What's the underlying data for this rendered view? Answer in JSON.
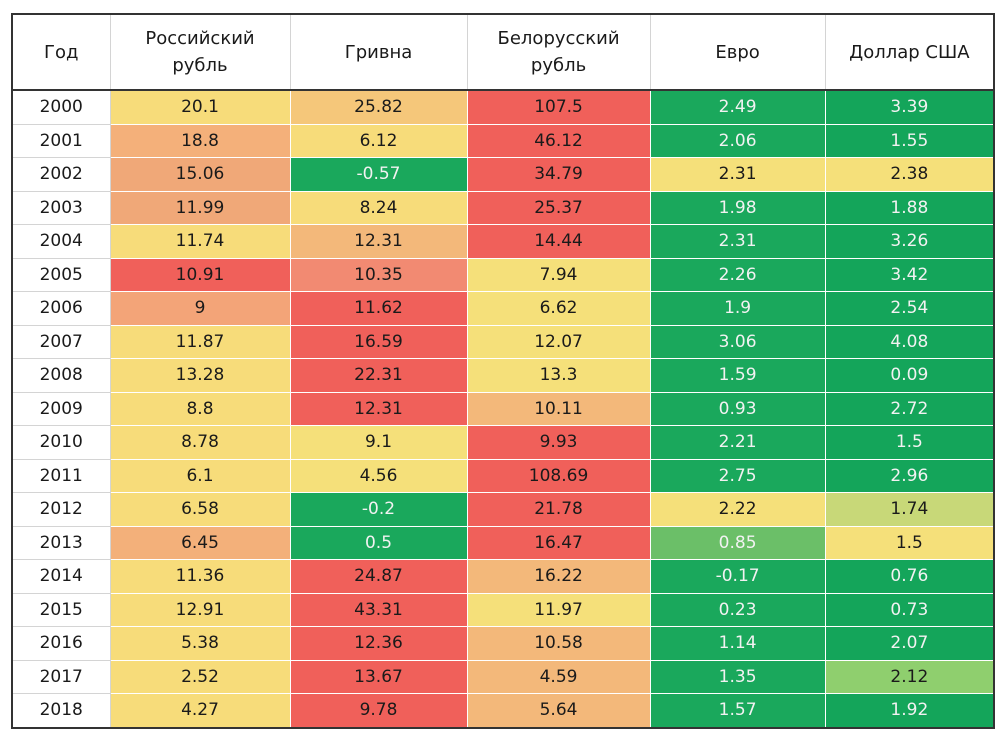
{
  "chart_data": {
    "type": "table",
    "columns": [
      "Год",
      "Российский рубль",
      "Гривна",
      "Белорусский рубль",
      "Евро",
      "Доллар США"
    ],
    "rows": [
      {
        "year": "2000",
        "values": [
          20.1,
          25.82,
          107.5,
          2.49,
          3.39
        ]
      },
      {
        "year": "2001",
        "values": [
          18.8,
          6.12,
          46.12,
          2.06,
          1.55
        ]
      },
      {
        "year": "2002",
        "values": [
          15.06,
          -0.57,
          34.79,
          2.31,
          2.38
        ]
      },
      {
        "year": "2003",
        "values": [
          11.99,
          8.24,
          25.37,
          1.98,
          1.88
        ]
      },
      {
        "year": "2004",
        "values": [
          11.74,
          12.31,
          14.44,
          2.31,
          3.26
        ]
      },
      {
        "year": "2005",
        "values": [
          10.91,
          10.35,
          7.94,
          2.26,
          3.42
        ]
      },
      {
        "year": "2006",
        "values": [
          9,
          11.62,
          6.62,
          1.9,
          2.54
        ]
      },
      {
        "year": "2007",
        "values": [
          11.87,
          16.59,
          12.07,
          3.06,
          4.08
        ]
      },
      {
        "year": "2008",
        "values": [
          13.28,
          22.31,
          13.3,
          1.59,
          0.09
        ]
      },
      {
        "year": "2009",
        "values": [
          8.8,
          12.31,
          10.11,
          0.93,
          2.72
        ]
      },
      {
        "year": "2010",
        "values": [
          8.78,
          9.1,
          9.93,
          2.21,
          1.5
        ]
      },
      {
        "year": "2011",
        "values": [
          6.1,
          4.56,
          108.69,
          2.75,
          2.96
        ]
      },
      {
        "year": "2012",
        "values": [
          6.58,
          -0.2,
          21.78,
          2.22,
          1.74
        ]
      },
      {
        "year": "2013",
        "values": [
          6.45,
          0.5,
          16.47,
          0.85,
          1.5
        ]
      },
      {
        "year": "2014",
        "values": [
          11.36,
          24.87,
          16.22,
          -0.17,
          0.76
        ]
      },
      {
        "year": "2015",
        "values": [
          12.91,
          43.31,
          11.97,
          0.23,
          0.73
        ]
      },
      {
        "year": "2016",
        "values": [
          5.38,
          12.36,
          10.58,
          1.14,
          2.07
        ]
      },
      {
        "year": "2017",
        "values": [
          2.52,
          13.67,
          4.59,
          1.35,
          2.12
        ]
      },
      {
        "year": "2018",
        "values": [
          4.27,
          9.78,
          5.64,
          1.57,
          1.92
        ]
      }
    ],
    "cell_colors": [
      [
        "#f7dc7a",
        "#f5c77a",
        "#f0605a",
        "#1aa85c",
        "#14a55a"
      ],
      [
        "#f4b07a",
        "#f7dc7a",
        "#f0605a",
        "#1aa85c",
        "#14a55a"
      ],
      [
        "#f0a878",
        "#1aa85c",
        "#f0605a",
        "#f5e07a",
        "#f5e07a"
      ],
      [
        "#f0a878",
        "#f7dc7a",
        "#f0605a",
        "#1aa85c",
        "#14a55a"
      ],
      [
        "#f7dc7a",
        "#f3b87a",
        "#f0605a",
        "#1aa85c",
        "#14a55a"
      ],
      [
        "#f0605a",
        "#f28a72",
        "#f5e07a",
        "#1aa85c",
        "#14a55a"
      ],
      [
        "#f3a478",
        "#f0605a",
        "#f5e07a",
        "#1aa85c",
        "#14a55a"
      ],
      [
        "#f7dc7a",
        "#f0605a",
        "#f5e07a",
        "#1aa85c",
        "#14a55a"
      ],
      [
        "#f7dc7a",
        "#f0605a",
        "#f5e07a",
        "#1aa85c",
        "#14a55a"
      ],
      [
        "#f7dc7a",
        "#f0605a",
        "#f3b87a",
        "#1aa85c",
        "#14a55a"
      ],
      [
        "#f7dc7a",
        "#f5e07a",
        "#f0605a",
        "#1aa85c",
        "#14a55a"
      ],
      [
        "#f7dc7a",
        "#f5e07a",
        "#f0605a",
        "#1aa85c",
        "#14a55a"
      ],
      [
        "#f7dc7a",
        "#1aa85c",
        "#f0605a",
        "#f5e07a",
        "#c8d878"
      ],
      [
        "#f3b07a",
        "#1aa85c",
        "#f0605a",
        "#6bbf68",
        "#f5e07a"
      ],
      [
        "#f7dc7a",
        "#f0605a",
        "#f3b87a",
        "#1aa85c",
        "#14a55a"
      ],
      [
        "#f7dc7a",
        "#f0605a",
        "#f5e07a",
        "#1aa85c",
        "#14a55a"
      ],
      [
        "#f7dc7a",
        "#f0605a",
        "#f3b87a",
        "#1aa85c",
        "#14a55a"
      ],
      [
        "#f7dc7a",
        "#f0605a",
        "#f3b87a",
        "#1aa85c",
        "#8fcf6e"
      ],
      [
        "#f7dc7a",
        "#f0605a",
        "#f3b87a",
        "#1aa85c",
        "#14a55a"
      ]
    ],
    "text_color_on_green": "#f2f2f2",
    "text_color_default": "#1a1a1a",
    "green_threshold": "#1aa85c"
  }
}
